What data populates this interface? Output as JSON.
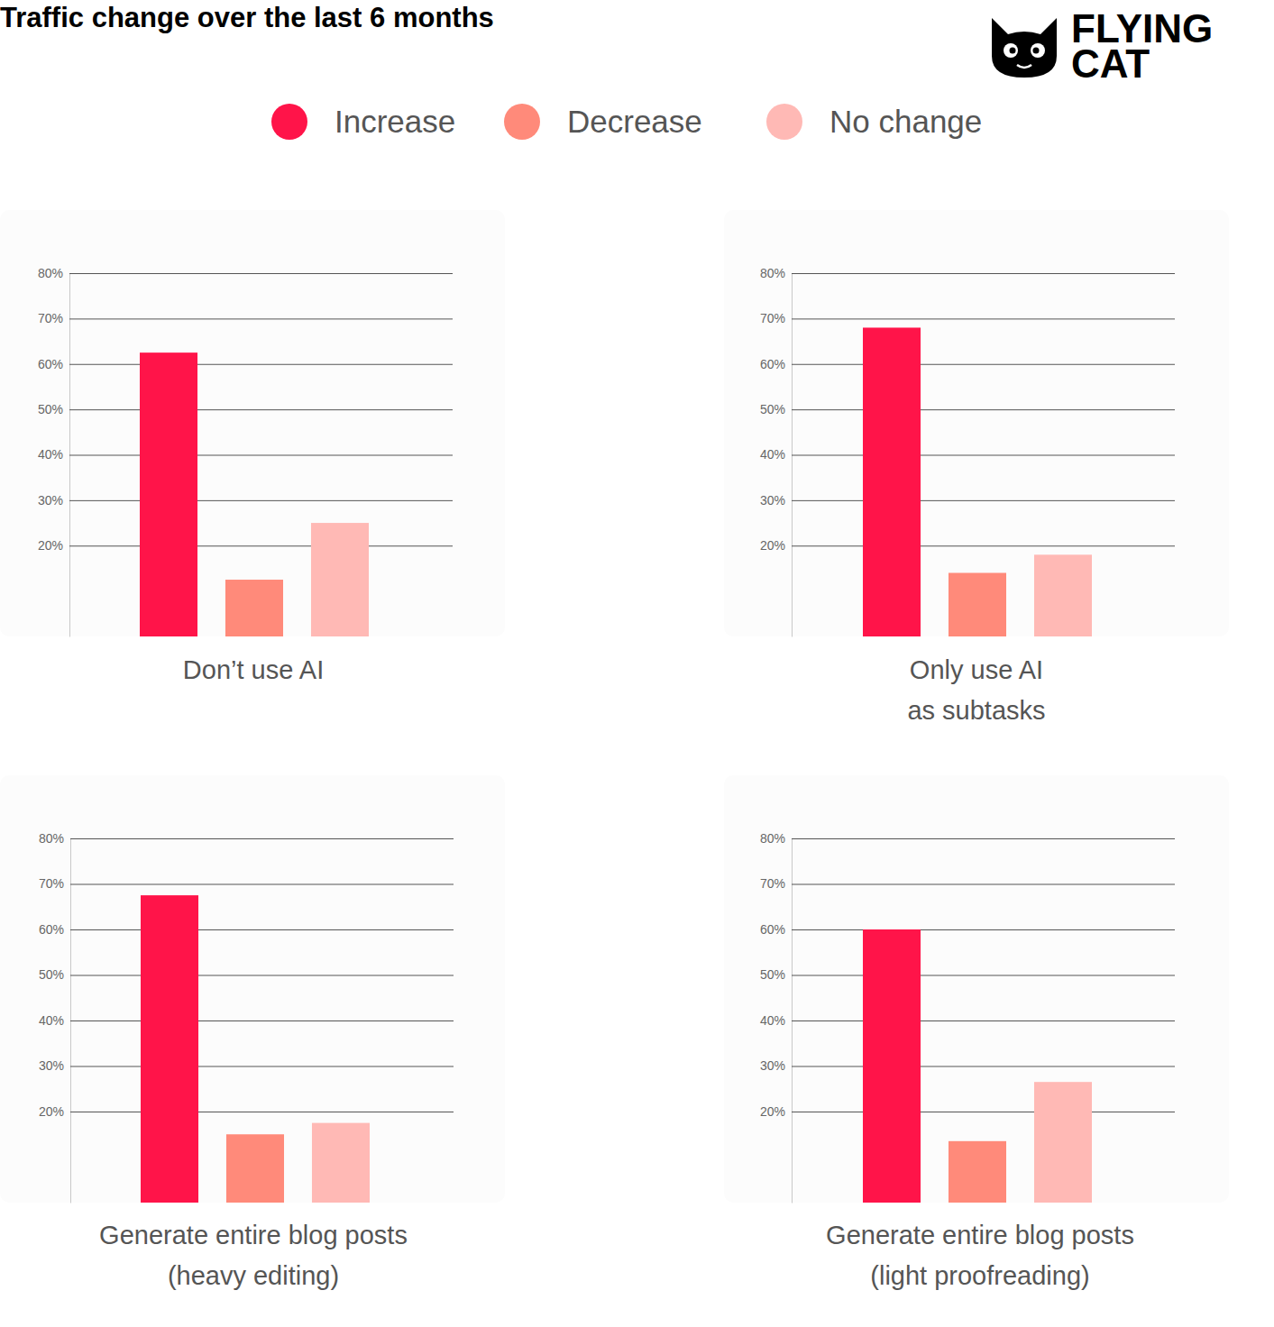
{
  "title": "Traffic change over the last 6 months",
  "brand": [
    "FLYING",
    "CAT"
  ],
  "legend": "top",
  "series": [
    {
      "name": "Increase",
      "color": "#ff1449"
    },
    {
      "name": "Decrease",
      "color": "#ff8a7a"
    },
    {
      "name": "No change",
      "color": "#ffb9b5"
    }
  ],
  "chart_data": [
    {
      "type": "bar",
      "xlabel": [
        "Don’t use AI"
      ],
      "values": [
        62.5,
        12.5,
        25
      ],
      "ylim": [
        0,
        80
      ],
      "yticks": [
        {
          "value": 20,
          "label": "20%"
        },
        {
          "value": 30,
          "label": "30%"
        },
        {
          "value": 40,
          "label": "40%"
        },
        {
          "value": 50,
          "label": "50%"
        },
        {
          "value": 60,
          "label": "60%"
        },
        {
          "value": 70,
          "label": "70%"
        },
        {
          "value": 80,
          "label": "80%"
        }
      ],
      "grid": true,
      "tick_labels": "y"
    },
    {
      "type": "bar",
      "xlabel": [
        "Only use AI",
        "as subtasks"
      ],
      "values": [
        68,
        14,
        18
      ],
      "ylim": [
        0,
        80
      ],
      "yticks": [
        {
          "value": 20,
          "label": "20%"
        },
        {
          "value": 30,
          "label": "30%"
        },
        {
          "value": 40,
          "label": "40%"
        },
        {
          "value": 50,
          "label": "50%"
        },
        {
          "value": 60,
          "label": "60%"
        },
        {
          "value": 70,
          "label": "70%"
        },
        {
          "value": 80,
          "label": "80%"
        }
      ],
      "grid": true,
      "tick_labels": "y"
    },
    {
      "type": "bar",
      "xlabel": [
        "Generate entire blog posts",
        "(heavy editing)"
      ],
      "values": [
        67.5,
        15,
        17.5
      ],
      "ylim": [
        0,
        80
      ],
      "yticks": [
        {
          "value": 20,
          "label": "20%"
        },
        {
          "value": 30,
          "label": "30%"
        },
        {
          "value": 40,
          "label": "40%"
        },
        {
          "value": 50,
          "label": "50%"
        },
        {
          "value": 60,
          "label": "60%"
        },
        {
          "value": 70,
          "label": "70%"
        },
        {
          "value": 80,
          "label": "80%"
        }
      ],
      "grid": true,
      "tick_labels": "y"
    },
    {
      "type": "bar",
      "xlabel": [
        "Generate entire blog posts",
        "(light proofreading)"
      ],
      "values": [
        60,
        13.5,
        26.5
      ],
      "ylim": [
        0,
        80
      ],
      "yticks": [
        {
          "value": 20,
          "label": "20%"
        },
        {
          "value": 30,
          "label": "30%"
        },
        {
          "value": 40,
          "label": "40%"
        },
        {
          "value": 50,
          "label": "50%"
        },
        {
          "value": 60,
          "label": "60%"
        },
        {
          "value": 70,
          "label": "70%"
        },
        {
          "value": 80,
          "label": "80%"
        }
      ],
      "grid": true,
      "tick_labels": "y"
    }
  ]
}
